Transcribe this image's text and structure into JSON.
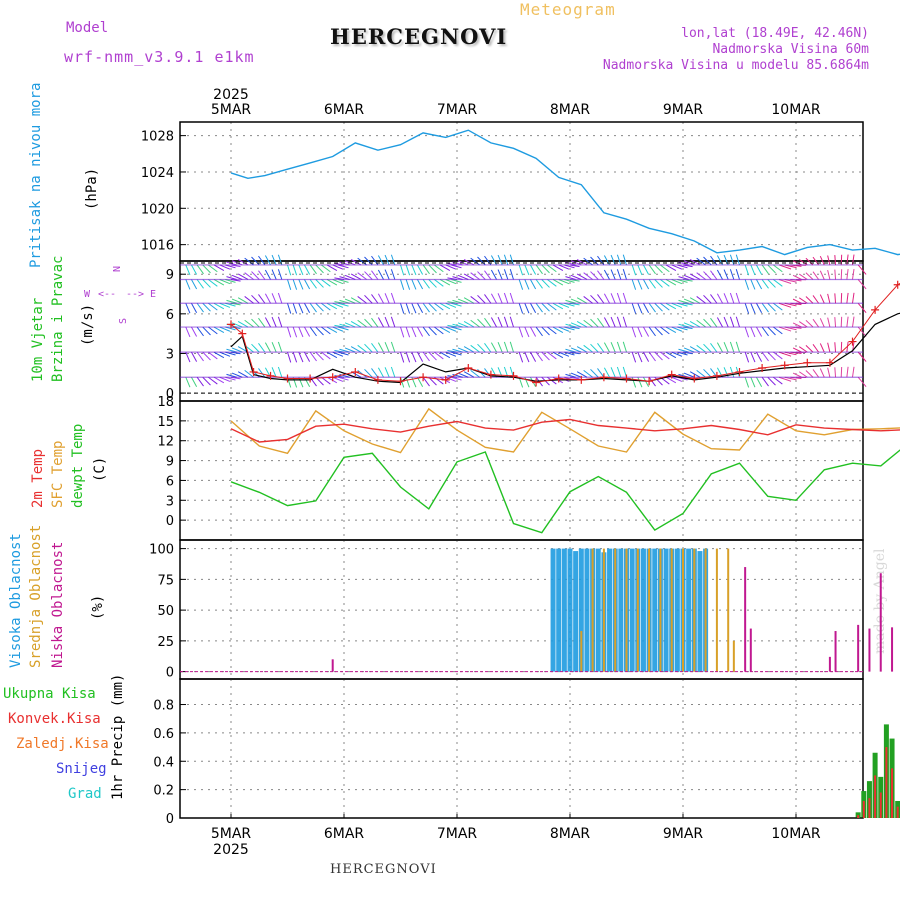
{
  "header": {
    "model_label": "Model",
    "model_name": "wrf-nmm_v3.9.1 e1km",
    "meteogram_label": "Meteogram",
    "station_title": "HERCEGNOVI",
    "lonlat": "lon,lat (18.49E, 42.46N)",
    "elevation": "Nadmorska Visina 60m",
    "model_elevation": "Nadmorska Visina u modelu 85.6864m"
  },
  "footer": {
    "station": "HERCEGNOVI",
    "credit": "made by Angel"
  },
  "colors": {
    "pressure": "#1e9be0",
    "temp2m": "#e83030",
    "sfc_temp": "#e0a030",
    "dewpoint": "#22c022",
    "high_cloud": "#1e9be0",
    "mid_cloud": "#d8a028",
    "low_cloud": "#c01890",
    "total_precip": "#22a022",
    "conv_precip": "#e83030",
    "frozen_precip": "#f07828",
    "snow": "#4040e0",
    "hail": "#20c8c8",
    "wind_speed": "#e02020",
    "wind_gust": "#000000"
  },
  "chart_data": [
    {
      "type": "line",
      "name": "pressure",
      "ylabel": "(hPa)",
      "side_label": "Pritisak na nivou mora",
      "year": "2025",
      "day_ticks": [
        "5MAR",
        "6MAR",
        "7MAR",
        "8MAR",
        "9MAR",
        "10MAR"
      ],
      "yticks": [
        1016,
        1020,
        1024,
        1028
      ],
      "ylim": [
        1014.2,
        1029.5
      ],
      "grid": true,
      "x": [
        0,
        0.15,
        0.3,
        0.5,
        0.7,
        0.9,
        1.1,
        1.3,
        1.5,
        1.7,
        1.9,
        2.1,
        2.3,
        2.5,
        2.7,
        2.9,
        3.1,
        3.3,
        3.5,
        3.7,
        3.9,
        4.1,
        4.3,
        4.5,
        4.7,
        4.9,
        5.1,
        5.3,
        5.5,
        5.7,
        5.9,
        6.1
      ],
      "series": [
        {
          "values": [
            1023.9,
            1023.3,
            1023.6,
            1024.3,
            1025.0,
            1025.7,
            1027.2,
            1026.4,
            1027.0,
            1028.3,
            1027.8,
            1028.6,
            1027.2,
            1026.6,
            1025.5,
            1023.4,
            1022.6,
            1019.5,
            1018.8,
            1017.8,
            1017.2,
            1016.4,
            1015.1,
            1015.4,
            1015.8,
            1014.9,
            1015.7,
            1016.0,
            1015.4,
            1015.6,
            1014.9,
            1015.3
          ]
        }
      ]
    },
    {
      "type": "line",
      "name": "wind",
      "ylabel": "(m/s)",
      "side_label_1": "10m Vjetar",
      "side_label_2": "Brzina i Pravac",
      "compass": {
        "n": "N",
        "s": "S",
        "w": "W",
        "e": "E",
        "w_arrow": "<--",
        "e_arrow": "-->"
      },
      "yticks": [
        0,
        3,
        6,
        9
      ],
      "ylim": [
        -0.6,
        10
      ],
      "grid": true,
      "x": [
        0,
        0.1,
        0.2,
        0.35,
        0.5,
        0.7,
        0.9,
        1.1,
        1.3,
        1.5,
        1.7,
        1.9,
        2.1,
        2.3,
        2.5,
        2.7,
        2.9,
        3.1,
        3.3,
        3.5,
        3.7,
        3.9,
        4.1,
        4.3,
        4.5,
        4.7,
        4.9,
        5.1,
        5.3,
        5.5,
        5.7,
        5.9,
        6.1
      ],
      "series": [
        {
          "name": "speed",
          "values": [
            5.2,
            4.5,
            1.6,
            1.3,
            1.1,
            1.1,
            1.2,
            1.6,
            1.0,
            0.9,
            1.2,
            1.0,
            1.9,
            1.4,
            1.3,
            0.8,
            1.1,
            1.0,
            1.2,
            1.1,
            0.9,
            1.4,
            1.1,
            1.3,
            1.6,
            1.9,
            2.1,
            2.3,
            2.3,
            3.9,
            6.3,
            8.2,
            9.2
          ]
        },
        {
          "name": "gust",
          "values": [
            3.5,
            4.3,
            1.4,
            1.1,
            1.0,
            1.0,
            1.8,
            1.2,
            0.9,
            0.8,
            2.2,
            1.6,
            1.9,
            1.3,
            1.2,
            0.9,
            1.0,
            1.0,
            1.1,
            1.0,
            0.9,
            1.3,
            1.0,
            1.2,
            1.5,
            1.7,
            1.9,
            2.0,
            2.1,
            3.2,
            5.2,
            6.0,
            6.4
          ]
        }
      ]
    },
    {
      "type": "line",
      "name": "temperature",
      "ylabel": "(C)",
      "side_label_1": "2m Temp",
      "side_label_2": "SFC Temp",
      "side_label_3": "dewpt Temp",
      "yticks": [
        0,
        3,
        6,
        9,
        12,
        15,
        18
      ],
      "ylim": [
        -3,
        18
      ],
      "grid": true,
      "x": [
        0,
        0.25,
        0.5,
        0.75,
        1.0,
        1.25,
        1.5,
        1.75,
        2.0,
        2.25,
        2.5,
        2.75,
        3.0,
        3.25,
        3.5,
        3.75,
        4.0,
        4.25,
        4.5,
        4.75,
        5.0,
        5.25,
        5.5,
        5.75,
        6.0,
        6.1
      ],
      "series": [
        {
          "name": "2m",
          "values": [
            13.8,
            11.8,
            12.2,
            14.2,
            14.5,
            13.8,
            13.3,
            14.2,
            14.9,
            13.9,
            13.6,
            14.8,
            15.2,
            14.3,
            13.9,
            13.5,
            13.8,
            14.3,
            13.7,
            12.9,
            14.4,
            13.9,
            13.7,
            13.5,
            13.7,
            13.8
          ]
        },
        {
          "name": "sfc",
          "values": [
            15.0,
            11.2,
            10.1,
            16.5,
            13.5,
            11.5,
            10.2,
            16.8,
            13.6,
            11.0,
            10.3,
            16.3,
            13.8,
            11.2,
            10.3,
            16.3,
            13.0,
            10.8,
            10.6,
            16.0,
            13.5,
            12.9,
            13.7,
            13.8,
            14.0,
            14.8
          ]
        },
        {
          "name": "dewpt",
          "values": [
            5.8,
            4.2,
            2.2,
            2.9,
            9.5,
            10.1,
            5.0,
            1.7,
            8.8,
            10.3,
            -0.5,
            -1.9,
            4.3,
            6.6,
            4.2,
            -1.5,
            1.0,
            7.0,
            8.6,
            3.6,
            3.0,
            7.6,
            8.6,
            8.2,
            11.7,
            12.2
          ]
        }
      ]
    },
    {
      "type": "bar",
      "name": "cloud_cover",
      "ylabel": "(%)",
      "side_label_1": "Visoka Oblacnost",
      "side_label_2": "Srednja Oblacnost",
      "side_label_3": "Niska Oblacnost",
      "yticks": [
        0,
        25,
        50,
        75,
        100
      ],
      "ylim": [
        -6,
        107
      ],
      "grid": true,
      "series": [
        {
          "name": "high",
          "x": [
            2.85,
            2.9,
            2.95,
            3.0,
            3.05,
            3.1,
            3.15,
            3.2,
            3.25,
            3.3,
            3.35,
            3.4,
            3.45,
            3.5,
            3.55,
            3.6,
            3.65,
            3.7,
            3.75,
            3.8,
            3.85,
            3.9,
            3.95,
            4.0,
            4.05,
            4.1,
            4.15,
            4.2
          ],
          "values": [
            100,
            100,
            100,
            100,
            98,
            100,
            100,
            100,
            100,
            97,
            100,
            100,
            100,
            100,
            100,
            100,
            100,
            100,
            100,
            100,
            100,
            100,
            100,
            100,
            100,
            100,
            98,
            100
          ]
        },
        {
          "name": "mid",
          "x": [
            3.1,
            3.2,
            3.3,
            3.4,
            3.5,
            3.6,
            3.7,
            3.8,
            3.9,
            4.0,
            4.1,
            4.2,
            4.3,
            4.4,
            4.45
          ],
          "values": [
            33,
            100,
            100,
            100,
            100,
            100,
            100,
            100,
            100,
            100,
            100,
            100,
            100,
            100,
            25
          ]
        },
        {
          "name": "low",
          "x": [
            0.9,
            4.55,
            4.6,
            5.3,
            5.35,
            5.55,
            5.65,
            5.75,
            5.85,
            6.0,
            6.05
          ],
          "values": [
            10,
            85,
            35,
            12,
            33,
            38,
            35,
            80,
            36,
            57,
            47
          ]
        }
      ]
    },
    {
      "type": "bar",
      "name": "precipitation",
      "ylabel": "1hr Precip (mm)",
      "side_label_1": "Ukupna Kisa",
      "side_label_2": "Konvek.Kisa",
      "side_label_3": "Zaledj.Kisa",
      "side_label_4": "Snijeg",
      "side_label_5": "Grad",
      "yticks": [
        0,
        0.2,
        0.4,
        0.6,
        0.8
      ],
      "ylim": [
        0,
        0.98
      ],
      "grid": true,
      "x": [
        5.55,
        5.6,
        5.65,
        5.7,
        5.75,
        5.8,
        5.85,
        5.9,
        5.95,
        6.0,
        6.05,
        6.1
      ],
      "series": [
        {
          "name": "total",
          "values": [
            0.04,
            0.19,
            0.26,
            0.46,
            0.29,
            0.66,
            0.56,
            0.12,
            0.06,
            0.1,
            0.03,
            0.06
          ]
        },
        {
          "name": "convective",
          "values": [
            0.02,
            0.12,
            0.14,
            0.3,
            0.18,
            0.5,
            0.35,
            0.08,
            0.03,
            0.06,
            0.02,
            0.03
          ]
        }
      ]
    }
  ]
}
